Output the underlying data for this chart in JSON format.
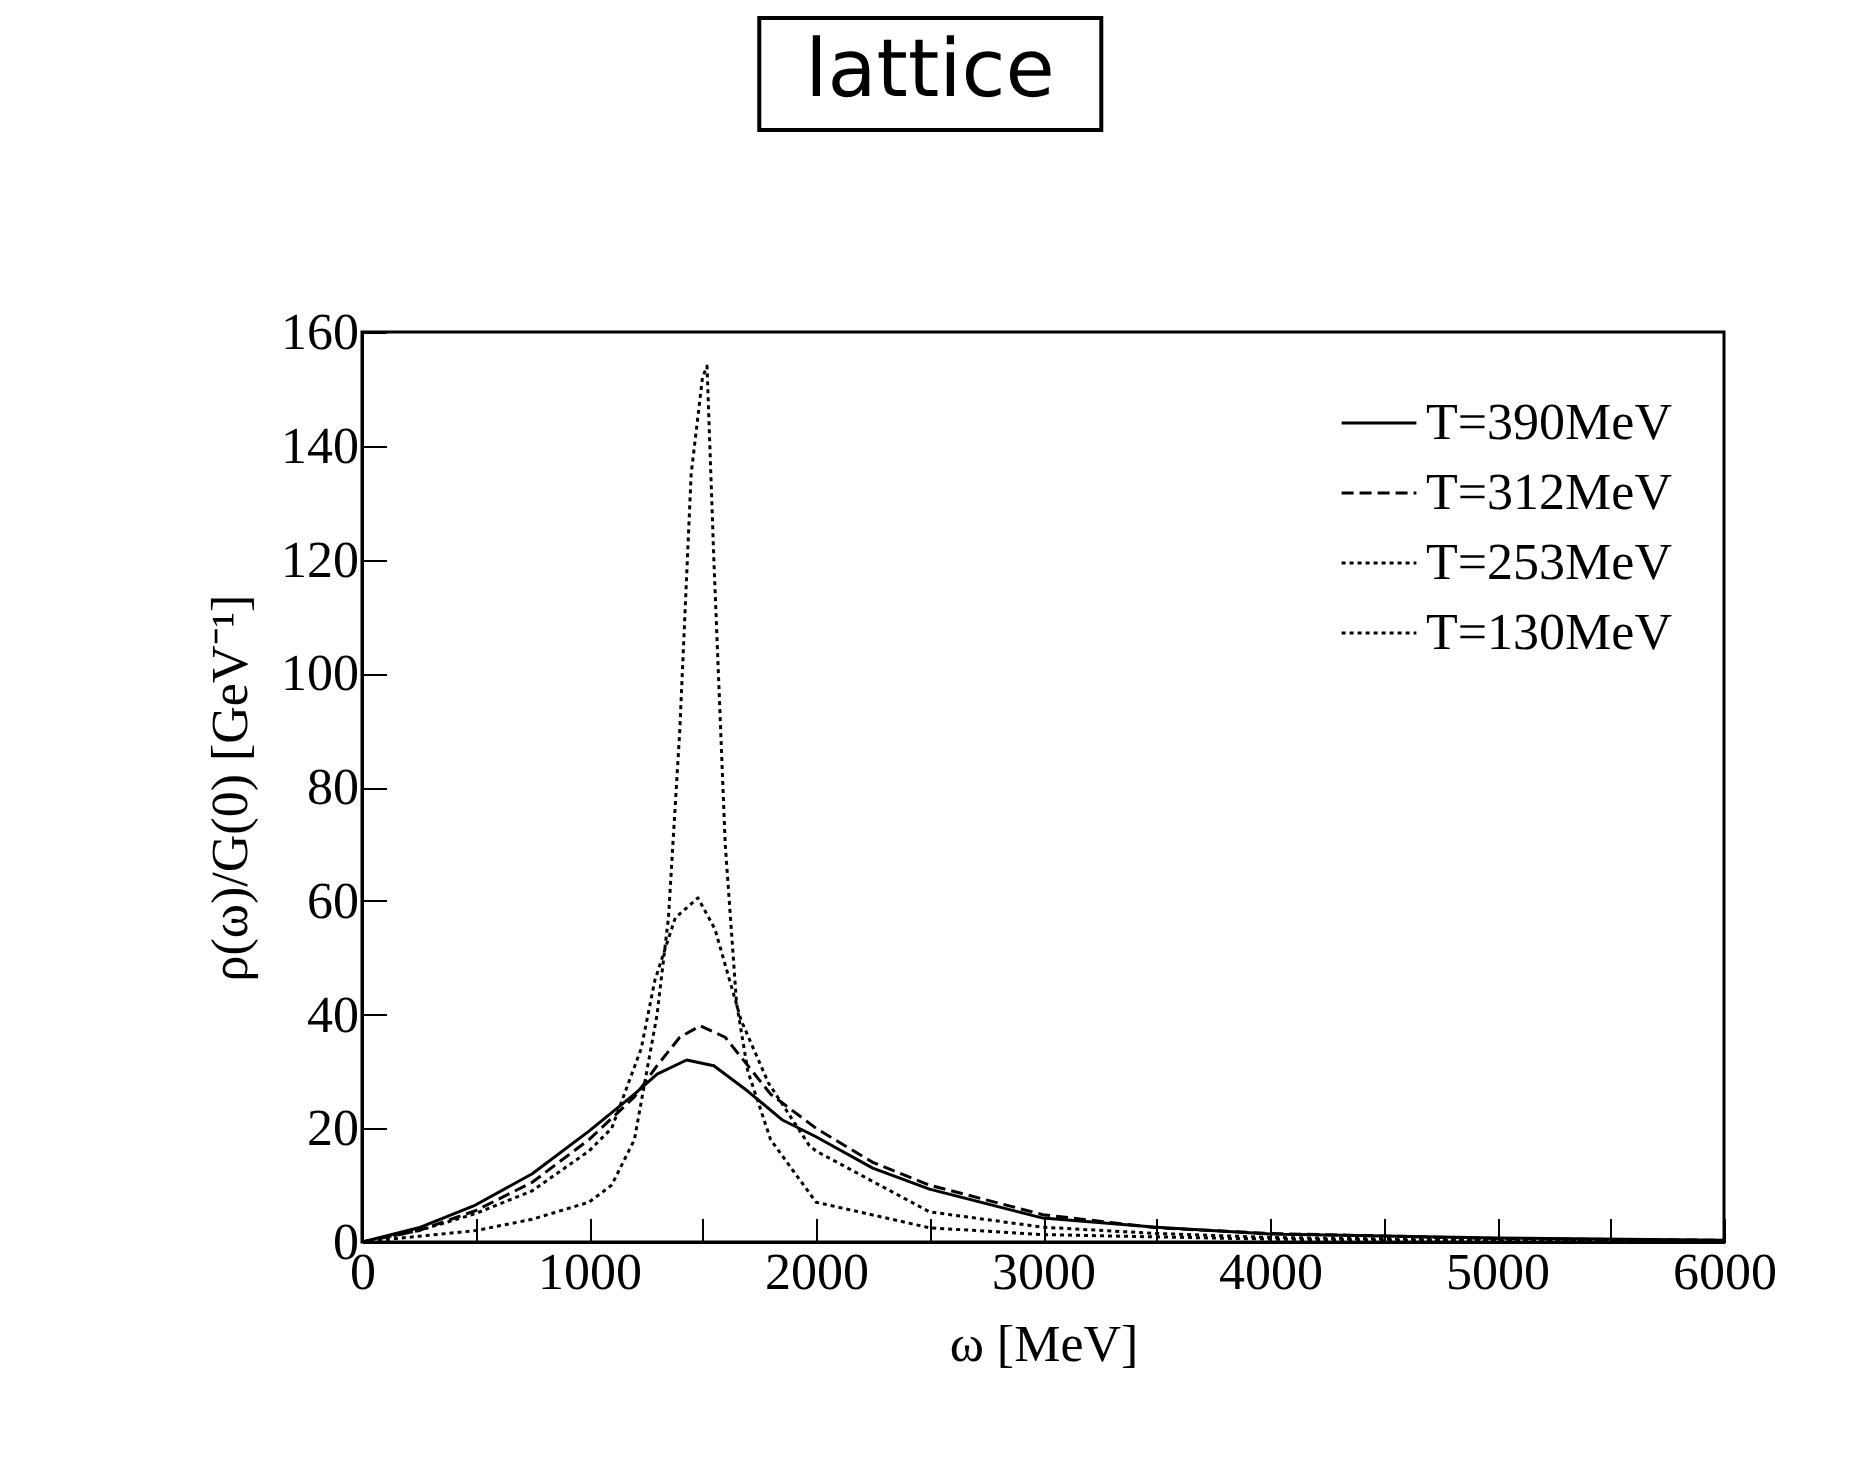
{
  "chart_data": {
    "type": "line",
    "title": "lattice",
    "xlabel": "ω [MeV]",
    "ylabel": "ρ(ω)/G(0) [GeV⁻¹]",
    "xlim": [
      0,
      6000
    ],
    "xticks": [
      0,
      {
        "value": 500,
        "label": null
      },
      1000,
      {
        "value": 1500,
        "label": null
      },
      2000,
      {
        "value": 2500,
        "label": null
      },
      3000,
      {
        "value": 3500,
        "label": null
      },
      4000,
      {
        "value": 4500,
        "label": null
      },
      5000,
      {
        "value": 5500,
        "label": null
      },
      6000
    ],
    "ylim": [
      0,
      160
    ],
    "yticks": [
      0,
      20,
      40,
      60,
      80,
      100,
      120,
      140,
      160
    ],
    "grid": false,
    "legend": "top right",
    "series": [
      {
        "name": "T=390MeV",
        "color": "#000000",
        "line_style": "solid",
        "x": [
          0,
          250,
          500,
          750,
          1000,
          1200,
          1300,
          1430,
          1550,
          1700,
          1850,
          2000,
          2250,
          2500,
          3000,
          3500,
          4000,
          5000,
          6000
        ],
        "values": [
          0,
          2.5,
          6.5,
          12,
          19.5,
          26,
          29.5,
          32,
          31,
          26.5,
          21.5,
          18.5,
          13,
          9.3,
          4.2,
          2.6,
          1.4,
          0.7,
          0.3
        ]
      },
      {
        "name": "T=312MeV",
        "color": "#000000",
        "line_style": "dashed",
        "x": [
          0,
          250,
          500,
          750,
          1000,
          1200,
          1300,
          1400,
          1490,
          1600,
          1700,
          1800,
          2000,
          2250,
          2500,
          3000,
          3500,
          4000,
          5000,
          6000
        ],
        "values": [
          0,
          2,
          5.5,
          10.5,
          18,
          25.5,
          31,
          36,
          38,
          36,
          31,
          26,
          20,
          14,
          10,
          4.8,
          2.5,
          1.5,
          0.6,
          0.3
        ]
      },
      {
        "name": "T=253MeV",
        "color": "#000000",
        "line_style": "dotted",
        "x": [
          0,
          250,
          500,
          750,
          1000,
          1100,
          1230,
          1290,
          1380,
          1480,
          1555,
          1670,
          1790,
          1970,
          2000,
          2500,
          3000,
          3500,
          4000,
          5000,
          6000
        ],
        "values": [
          0,
          2,
          5,
          9,
          16,
          20,
          34,
          46,
          57,
          60.5,
          55,
          39,
          28,
          17,
          16,
          5.3,
          2.6,
          1.5,
          0.8,
          0.3,
          0.1
        ]
      },
      {
        "name": "T=130MeV",
        "color": "#000000",
        "line_style": "dotted",
        "x": [
          0,
          250,
          500,
          750,
          1000,
          1100,
          1200,
          1300,
          1350,
          1400,
          1450,
          1500,
          1520,
          1550,
          1600,
          1650,
          1700,
          1800,
          2000,
          2500,
          3000,
          4000,
          5000,
          6000
        ],
        "values": [
          0,
          1,
          2,
          4,
          7,
          10,
          18,
          40,
          57,
          90,
          135,
          152,
          154,
          120,
          70,
          42,
          30,
          18,
          7,
          2.5,
          1.3,
          0.5,
          0.2,
          0.1
        ]
      }
    ]
  }
}
